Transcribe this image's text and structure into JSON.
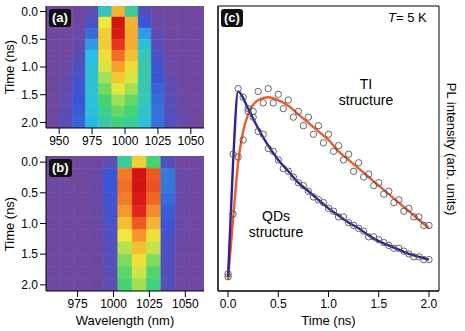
{
  "chart_data": [
    {
      "type": "heatmap",
      "panel": "(a)",
      "ylabel": "Time (ns)",
      "x": [
        945,
        955,
        965,
        975,
        985,
        995,
        1005,
        1015,
        1025,
        1035,
        1045,
        1055
      ],
      "y": [
        0,
        0.2,
        0.4,
        0.6,
        0.8,
        1,
        1.2,
        1.4,
        1.6,
        1.8,
        2
      ],
      "cells": [
        [
          0,
          0,
          0,
          0.05,
          0.35,
          0.7,
          0.4,
          0.08,
          0,
          0,
          0,
          0
        ],
        [
          0,
          0,
          0,
          0.1,
          0.6,
          1.0,
          0.7,
          0.15,
          0.02,
          0,
          0,
          0
        ],
        [
          0,
          0,
          0.02,
          0.18,
          0.65,
          0.97,
          0.72,
          0.25,
          0.04,
          0,
          0,
          0
        ],
        [
          0,
          0,
          0.04,
          0.25,
          0.65,
          0.9,
          0.72,
          0.32,
          0.07,
          0,
          0,
          0
        ],
        [
          0,
          0,
          0.06,
          0.3,
          0.62,
          0.82,
          0.68,
          0.36,
          0.1,
          0.01,
          0,
          0
        ],
        [
          0,
          0.01,
          0.09,
          0.32,
          0.58,
          0.74,
          0.63,
          0.38,
          0.13,
          0.02,
          0,
          0
        ],
        [
          0,
          0.02,
          0.11,
          0.33,
          0.53,
          0.66,
          0.58,
          0.38,
          0.15,
          0.03,
          0,
          0
        ],
        [
          0,
          0.03,
          0.13,
          0.33,
          0.49,
          0.59,
          0.53,
          0.37,
          0.17,
          0.05,
          0,
          0
        ],
        [
          0,
          0.04,
          0.15,
          0.32,
          0.45,
          0.53,
          0.48,
          0.36,
          0.18,
          0.06,
          0.01,
          0
        ],
        [
          0,
          0.05,
          0.16,
          0.31,
          0.41,
          0.48,
          0.44,
          0.34,
          0.19,
          0.07,
          0.01,
          0
        ],
        [
          0,
          0.06,
          0.17,
          0.29,
          0.38,
          0.43,
          0.4,
          0.32,
          0.19,
          0.08,
          0.02,
          0
        ]
      ],
      "xlim": [
        940,
        1060
      ],
      "xticks": [
        950,
        975,
        1000,
        1025,
        1050
      ],
      "ylim": [
        2.1,
        -0.1
      ],
      "yticks": [
        {
          "value": 0,
          "label": "0.0"
        },
        0.5,
        {
          "value": 1,
          "label": "1.0"
        },
        1.5,
        {
          "value": 2,
          "label": "2.0"
        }
      ]
    },
    {
      "type": "heatmap",
      "panel": "(b)",
      "xlabel": "Wavelength (nm)",
      "ylabel": "Time (ns)",
      "x": [
        958,
        968,
        978,
        988,
        998,
        1008,
        1018,
        1028,
        1038,
        1048,
        1058
      ],
      "y": [
        0,
        0.2,
        0.4,
        0.6,
        0.8,
        1,
        1.2,
        1.4,
        1.6,
        1.8,
        2
      ],
      "cells": [
        [
          0,
          0,
          0,
          0,
          0.05,
          0.4,
          0.65,
          0.45,
          0.08,
          0,
          0
        ],
        [
          0,
          0,
          0,
          0.02,
          0.15,
          0.8,
          1.0,
          0.85,
          0.2,
          0.02,
          0
        ],
        [
          0,
          0,
          0,
          0.02,
          0.15,
          0.82,
          1.0,
          0.86,
          0.2,
          0.02,
          0
        ],
        [
          0,
          0,
          0,
          0.02,
          0.14,
          0.8,
          0.97,
          0.83,
          0.18,
          0.02,
          0
        ],
        [
          0,
          0,
          0,
          0.01,
          0.12,
          0.75,
          0.92,
          0.78,
          0.16,
          0.01,
          0
        ],
        [
          0,
          0,
          0,
          0.01,
          0.1,
          0.68,
          0.85,
          0.7,
          0.14,
          0.01,
          0
        ],
        [
          0,
          0,
          0,
          0.01,
          0.09,
          0.6,
          0.76,
          0.62,
          0.12,
          0.01,
          0
        ],
        [
          0,
          0,
          0,
          0,
          0.08,
          0.55,
          0.68,
          0.56,
          0.1,
          0,
          0
        ],
        [
          0,
          0,
          0,
          0,
          0.07,
          0.5,
          0.62,
          0.5,
          0.09,
          0,
          0
        ],
        [
          0,
          0,
          0,
          0,
          0.06,
          0.47,
          0.57,
          0.46,
          0.08,
          0,
          0
        ],
        [
          0,
          0,
          0,
          0,
          0.05,
          0.44,
          0.53,
          0.43,
          0.07,
          0,
          0
        ]
      ],
      "xlim": [
        953,
        1063
      ],
      "xticks": [
        975,
        1000,
        1025,
        1050
      ],
      "ylim": [
        2.1,
        -0.1
      ],
      "yticks": [
        {
          "value": 0,
          "label": "0.0"
        },
        0.5,
        {
          "value": 1,
          "label": "1.0"
        },
        1.5,
        {
          "value": 2,
          "label": "2.0"
        }
      ]
    },
    {
      "type": "scatter",
      "panel": "(c)",
      "xlabel": "Time (ns)",
      "ylabel": "PL intensity (arb. units)",
      "annotations": [
        "T= 5 K"
      ],
      "xlim": [
        -0.1,
        2.1
      ],
      "xticks": [
        {
          "value": 0,
          "label": "0.0"
        },
        0.5,
        {
          "value": 1,
          "label": "1.0"
        },
        1.5,
        {
          "value": 2,
          "label": "2.0"
        }
      ],
      "ylim": [
        0,
        1
      ],
      "yticks": [],
      "tick_labels": "x",
      "series": [
        {
          "name": "TI structure",
          "color": "#ee5a2e",
          "marker": "circle",
          "line_style": "solid",
          "x": [
            0,
            0.05,
            0.1,
            0.15,
            0.2,
            0.25,
            0.3,
            0.35,
            0.4,
            0.45,
            0.5,
            0.55,
            0.6,
            0.65,
            0.7,
            0.75,
            0.8,
            0.85,
            0.9,
            0.95,
            1,
            1.05,
            1.1,
            1.15,
            1.2,
            1.25,
            1.3,
            1.35,
            1.4,
            1.45,
            1.5,
            1.55,
            1.6,
            1.65,
            1.7,
            1.75,
            1.8,
            1.85,
            1.9,
            1.95,
            2
          ],
          "values": [
            0.05,
            0.27,
            0.47,
            0.53,
            0.64,
            0.63,
            0.7,
            0.66,
            0.71,
            0.66,
            0.69,
            0.64,
            0.67,
            0.61,
            0.63,
            0.58,
            0.61,
            0.55,
            0.58,
            0.52,
            0.55,
            0.49,
            0.51,
            0.46,
            0.48,
            0.42,
            0.45,
            0.4,
            0.41,
            0.37,
            0.38,
            0.34,
            0.35,
            0.31,
            0.32,
            0.28,
            0.29,
            0.26,
            0.26,
            0.23,
            0.23
          ],
          "fit_x": [
            0,
            0.05,
            0.1,
            0.15,
            0.2,
            0.3,
            0.4,
            0.5,
            0.6,
            0.7,
            0.8,
            0.9,
            1,
            1.1,
            1.2,
            1.3,
            1.4,
            1.5,
            1.6,
            1.7,
            1.8,
            1.9,
            2
          ],
          "fit_values": [
            0.04,
            0.25,
            0.45,
            0.56,
            0.62,
            0.67,
            0.68,
            0.67,
            0.65,
            0.62,
            0.59,
            0.56,
            0.53,
            0.49,
            0.46,
            0.43,
            0.4,
            0.37,
            0.34,
            0.31,
            0.28,
            0.25,
            0.22
          ]
        },
        {
          "name": "QDs structure",
          "color": "#2f1f9a",
          "marker": "circle",
          "line_style": "solid",
          "x": [
            0,
            0.05,
            0.1,
            0.15,
            0.2,
            0.25,
            0.3,
            0.35,
            0.4,
            0.45,
            0.5,
            0.55,
            0.6,
            0.65,
            0.7,
            0.75,
            0.8,
            0.85,
            0.9,
            0.95,
            1,
            1.05,
            1.1,
            1.15,
            1.2,
            1.25,
            1.3,
            1.35,
            1.4,
            1.45,
            1.5,
            1.55,
            1.6,
            1.65,
            1.7,
            1.75,
            1.8,
            1.85,
            1.9,
            1.95,
            2
          ],
          "values": [
            0.06,
            0.48,
            0.71,
            0.68,
            0.63,
            0.61,
            0.56,
            0.55,
            0.5,
            0.49,
            0.46,
            0.43,
            0.42,
            0.4,
            0.38,
            0.37,
            0.35,
            0.33,
            0.32,
            0.31,
            0.29,
            0.28,
            0.26,
            0.26,
            0.24,
            0.23,
            0.22,
            0.21,
            0.19,
            0.19,
            0.18,
            0.17,
            0.16,
            0.15,
            0.15,
            0.14,
            0.13,
            0.12,
            0.12,
            0.11,
            0.11
          ],
          "fit_x": [
            0,
            0.05,
            0.1,
            0.2,
            0.3,
            0.4,
            0.5,
            0.6,
            0.7,
            0.8,
            0.9,
            1,
            1.1,
            1.2,
            1.3,
            1.4,
            1.5,
            1.6,
            1.7,
            1.8,
            1.9,
            2
          ],
          "fit_values": [
            0.05,
            0.45,
            0.7,
            0.64,
            0.57,
            0.51,
            0.46,
            0.42,
            0.38,
            0.35,
            0.32,
            0.29,
            0.265,
            0.24,
            0.22,
            0.195,
            0.175,
            0.16,
            0.145,
            0.13,
            0.12,
            0.11
          ]
        }
      ]
    }
  ]
}
